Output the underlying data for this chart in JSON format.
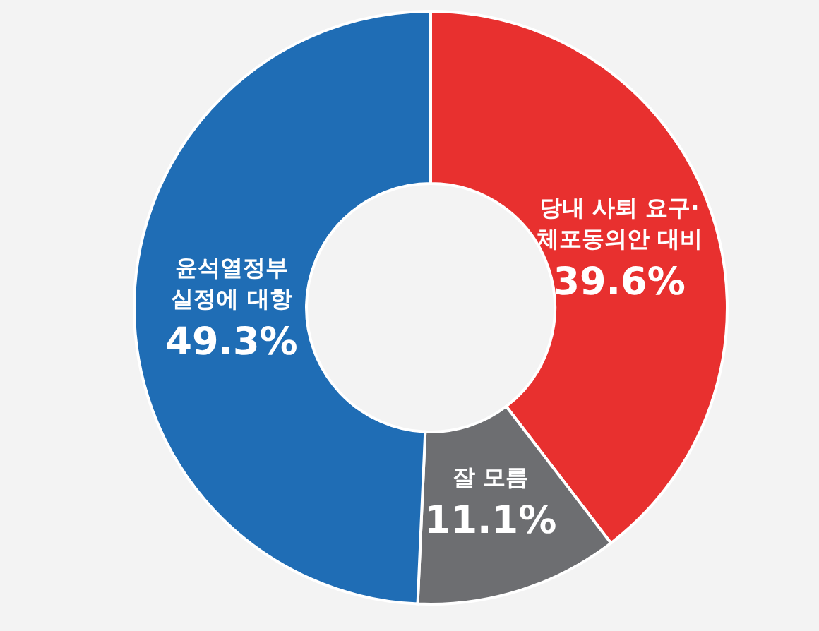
{
  "chart_data": {
    "type": "donut",
    "categories": [
      "당내 사퇴 요구·\n체포동의안 대비",
      "잘 모름",
      "윤석열정부\n실정에 대항"
    ],
    "values": [
      39.6,
      11.1,
      49.3
    ],
    "colors": [
      "#e8302f",
      "#6d6e71",
      "#1f6db5"
    ],
    "value_labels": [
      "39.6%",
      "11.1%",
      "49.3%"
    ]
  }
}
